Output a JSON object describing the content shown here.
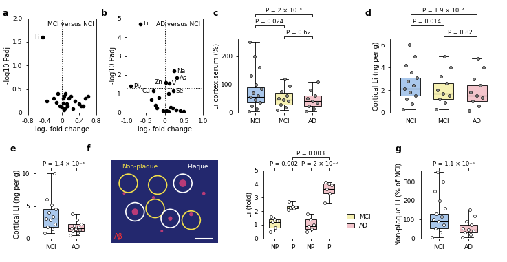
{
  "chart_data": [
    {
      "type": "volcano",
      "panel_label": "a",
      "title": "MCI versus NCI",
      "x_label": "log₂ fold change",
      "y_label": "-log10 Padj",
      "x": [
        -0.45,
        -0.36,
        -0.2,
        -0.13,
        -0.05,
        0.0,
        0.02,
        0.03,
        0.05,
        0.08,
        0.1,
        0.12,
        0.15,
        0.2,
        0.25,
        0.3,
        0.4,
        0.45,
        0.5,
        0.55,
        0.6,
        -0.1,
        0.04,
        0.07
      ],
      "y": [
        1.6,
        0.25,
        0.3,
        0.22,
        0.15,
        0.12,
        0.2,
        0.3,
        0.35,
        0.4,
        0.18,
        0.15,
        0.3,
        0.35,
        0.08,
        0.25,
        0.18,
        0.15,
        0.15,
        0.3,
        0.35,
        0.4,
        0.05,
        0.1
      ],
      "point_labels": [
        "Li",
        null,
        null,
        null,
        null,
        null,
        null,
        null,
        null,
        null,
        null,
        null,
        null,
        null,
        null,
        null,
        null,
        null,
        null,
        null,
        null,
        null,
        null,
        null
      ],
      "reference_lines": {
        "x": 0,
        "y": 1.3
      },
      "xlim": [
        -0.8,
        0.8
      ],
      "xticks": [
        -0.8,
        -0.4,
        0,
        0.4,
        0.8
      ],
      "ylim": [
        0,
        2.0
      ],
      "yticks": [
        0,
        0.5,
        1.0,
        1.5,
        2.0
      ]
    },
    {
      "type": "volcano",
      "panel_label": "b",
      "title": "AD versus NCI",
      "x_label": "log₂ fold change",
      "y_label": "-log10 Padj",
      "x": [
        -0.9,
        -0.65,
        -0.3,
        0.02,
        0.12,
        0.25,
        0.32,
        0.22,
        -0.35,
        -0.25,
        -0.2,
        -0.15,
        -0.05,
        0.0,
        0.05,
        0.1,
        0.15,
        0.2,
        0.1,
        0.3,
        0.4,
        0.5
      ],
      "y": [
        1.4,
        4.7,
        1.15,
        1.6,
        1.55,
        2.2,
        1.85,
        1.15,
        0.7,
        0.4,
        0.25,
        0.8,
        0.1,
        0.05,
        0.1,
        0.05,
        0.3,
        0.25,
        1.0,
        0.15,
        0.1,
        0.05
      ],
      "point_labels": [
        "Pb",
        "Li",
        "Cu",
        "Zn",
        "V",
        "Na",
        "As",
        "Se",
        null,
        null,
        null,
        null,
        null,
        null,
        null,
        null,
        null,
        null,
        null,
        null,
        null,
        null
      ],
      "reference_lines": {
        "x": 0,
        "y": 1.3
      },
      "xlim": [
        -1.0,
        1.0
      ],
      "xticks": [
        -1.0,
        -0.5,
        0,
        0.5,
        1.0
      ],
      "ylim": [
        0,
        5
      ],
      "yticks": [
        0,
        1,
        2,
        3,
        4,
        5
      ]
    },
    {
      "type": "box",
      "panel_label": "c",
      "y_label": "Li cortex:serum (%)",
      "marker": "filled_circle",
      "categories": [
        "NCI",
        "MCI",
        "AD"
      ],
      "colors": [
        "#aac8ec",
        "#f6f1b3",
        "#f3c5cc"
      ],
      "boxes": [
        {
          "min": 5,
          "q1": 35,
          "median": 55,
          "q3": 90,
          "max": 250,
          "points": [
            5,
            15,
            25,
            35,
            45,
            55,
            60,
            70,
            85,
            100,
            130,
            160,
            200,
            250
          ]
        },
        {
          "min": 10,
          "q1": 30,
          "median": 45,
          "q3": 70,
          "max": 120,
          "points": [
            10,
            20,
            30,
            40,
            45,
            50,
            60,
            75,
            95,
            120
          ]
        },
        {
          "min": 5,
          "q1": 25,
          "median": 40,
          "q3": 60,
          "max": 110,
          "points": [
            5,
            15,
            25,
            35,
            40,
            50,
            60,
            80,
            110
          ]
        }
      ],
      "comparisons": [
        {
          "pair": [
            1,
            2
          ],
          "label": "P = 0.62"
        },
        {
          "pair": [
            0,
            1
          ],
          "label": "P = 0.024"
        },
        {
          "pair": [
            0,
            2
          ],
          "label": "P = 2 × 10⁻⁵"
        }
      ],
      "ylim": [
        0,
        260
      ],
      "yticks": [
        0,
        100,
        200
      ]
    },
    {
      "type": "box",
      "panel_label": "d",
      "y_label": "Cortical Li (ng per g)",
      "marker": "filled_circle",
      "categories": [
        "NCI",
        "MCI",
        "AD"
      ],
      "colors": [
        "#aac8ec",
        "#f6f1b3",
        "#f3c5cc"
      ],
      "boxes": [
        {
          "min": 0.3,
          "q1": 1.5,
          "median": 2.1,
          "q3": 3.1,
          "max": 6.0,
          "points": [
            0.3,
            0.8,
            1.2,
            1.5,
            1.8,
            2.1,
            2.4,
            2.8,
            3.1,
            3.6,
            4.2,
            5.0,
            6.0
          ]
        },
        {
          "min": 0.3,
          "q1": 1.2,
          "median": 1.7,
          "q3": 2.6,
          "max": 5.0,
          "points": [
            0.3,
            0.9,
            1.2,
            1.5,
            1.7,
            2.0,
            2.6,
            3.2,
            4.0,
            5.0
          ]
        },
        {
          "min": 0.2,
          "q1": 1.0,
          "median": 1.5,
          "q3": 2.4,
          "max": 4.8,
          "points": [
            0.2,
            0.6,
            1.0,
            1.3,
            1.5,
            1.8,
            2.4,
            3.0,
            4.0,
            4.8
          ]
        }
      ],
      "comparisons": [
        {
          "pair": [
            1,
            2
          ],
          "label": "P = 0.82"
        },
        {
          "pair": [
            0,
            1
          ],
          "label": "P = 0.014"
        },
        {
          "pair": [
            0,
            2
          ],
          "label": "P = 1.9 × 10⁻⁴"
        }
      ],
      "ylim": [
        0,
        6.5
      ],
      "yticks": [
        0,
        2,
        4,
        6
      ]
    },
    {
      "type": "box",
      "panel_label": "e",
      "y_label": "Cortical Li (ng per g)",
      "marker": "open_circle",
      "categories": [
        "NCI",
        "AD"
      ],
      "colors": [
        "#aac8ec",
        "#f3c5cc"
      ],
      "boxes": [
        {
          "min": 0.8,
          "q1": 1.8,
          "median": 3.0,
          "q3": 4.5,
          "max": 10.0,
          "points": [
            0.8,
            1.5,
            1.8,
            2.2,
            2.8,
            3.0,
            3.4,
            4.0,
            4.5,
            5.2,
            6.0,
            10.0
          ]
        },
        {
          "min": 0.5,
          "q1": 1.1,
          "median": 1.6,
          "q3": 2.2,
          "max": 3.8,
          "points": [
            0.5,
            0.8,
            1.1,
            1.3,
            1.5,
            1.6,
            1.8,
            2.0,
            2.2,
            2.8,
            3.8
          ]
        }
      ],
      "comparisons": [
        {
          "pair": [
            0,
            1
          ],
          "label": "P = 1.4 × 10⁻³"
        }
      ],
      "ylim": [
        0,
        10.5
      ],
      "yticks": [
        0,
        5,
        10
      ]
    },
    {
      "type": "micrograph",
      "panel_label": "f",
      "region_labels": [
        "Non-plaque",
        "Plaque"
      ],
      "stain_label": "Aβ"
    },
    {
      "type": "box",
      "y_label": "Li (fold)",
      "marker": "open_circle",
      "legend": "right",
      "categories": [
        "NP",
        "P",
        "NP",
        "P"
      ],
      "colors": [
        "#f6f1b3",
        "#f6f1b3",
        "#f3c5cc",
        "#f3c5cc"
      ],
      "series": [
        {
          "name": "MCI",
          "color": "#f6f1b3"
        },
        {
          "name": "AD",
          "color": "#f3c5cc"
        }
      ],
      "boxes": [
        {
          "min": 0.5,
          "q1": 0.8,
          "median": 1.2,
          "q3": 1.4,
          "max": 1.6,
          "points": [
            0.5,
            0.8,
            1.2,
            1.3,
            1.4,
            1.6
          ]
        },
        {
          "min": 2.1,
          "q1": 2.2,
          "median": 2.25,
          "q3": 2.35,
          "max": 2.7,
          "points": [
            2.1,
            2.2,
            2.25,
            2.3,
            2.35,
            2.7
          ]
        },
        {
          "min": 0.5,
          "q1": 0.7,
          "median": 0.9,
          "q3": 1.4,
          "max": 1.8,
          "points": [
            0.5,
            0.7,
            0.9,
            1.0,
            1.4,
            1.8
          ]
        },
        {
          "min": 2.6,
          "q1": 3.3,
          "median": 3.6,
          "q3": 4.0,
          "max": 4.1,
          "points": [
            2.6,
            3.3,
            3.6,
            3.9,
            4.0,
            4.1
          ]
        }
      ],
      "comparisons": [
        {
          "pair": [
            0,
            1
          ],
          "label": "P = 0.002"
        },
        {
          "pair": [
            2,
            3
          ],
          "label": "P = 2 × 10⁻⁶"
        },
        {
          "pair": [
            1,
            3
          ],
          "label": "P = 0.003"
        }
      ],
      "ylim": [
        0,
        5
      ],
      "yticks": [
        0,
        1,
        2,
        3,
        4,
        5
      ]
    },
    {
      "type": "box",
      "panel_label": "g",
      "y_label": "Non-plaque Li (% of NCI)",
      "marker": "open_circle",
      "categories": [
        "NCI",
        "AD"
      ],
      "colors": [
        "#aac8ec",
        "#f3c5cc"
      ],
      "boxes": [
        {
          "min": 5,
          "q1": 55,
          "median": 90,
          "q3": 130,
          "max": 350,
          "points": [
            5,
            30,
            55,
            70,
            90,
            100,
            115,
            130,
            160,
            200,
            250,
            300,
            350
          ]
        },
        {
          "min": 5,
          "q1": 30,
          "median": 45,
          "q3": 70,
          "max": 150,
          "points": [
            5,
            20,
            30,
            40,
            45,
            55,
            70,
            90,
            120,
            150
          ]
        }
      ],
      "comparisons": [
        {
          "pair": [
            0,
            1
          ],
          "label": "P = 1.1 × 10⁻⁵"
        }
      ],
      "ylim": [
        0,
        360
      ],
      "yticks": [
        0,
        100,
        200,
        300
      ]
    }
  ]
}
